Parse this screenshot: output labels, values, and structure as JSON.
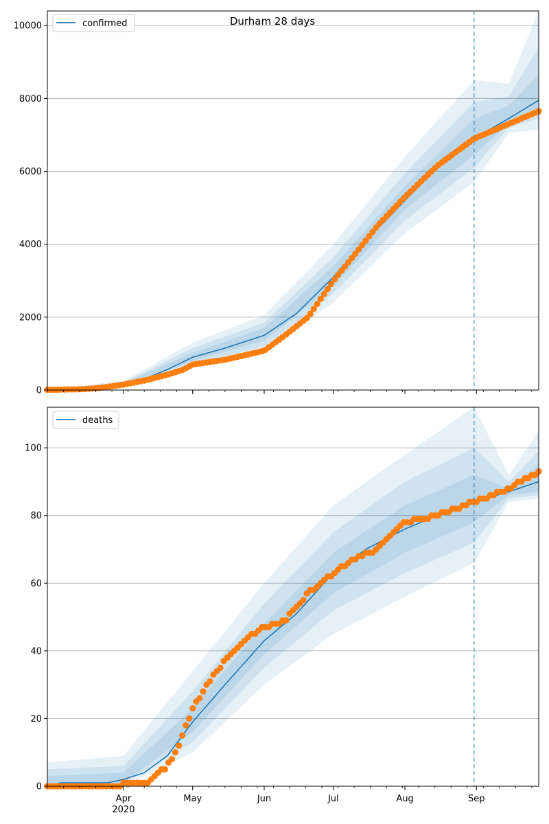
{
  "title": "Durham 28 days",
  "colors": {
    "model": "#1f77b4",
    "observed": "#ff7f0e",
    "band": "#1f77b4",
    "grid": "#b0b0b0",
    "cutoff": "#1f77b4"
  },
  "x_axis": {
    "start": "2020-02-28",
    "end": "2020-09-28",
    "month_labels": [
      {
        "date": "2020-04-01",
        "label": "Apr",
        "sublabel": "2020"
      },
      {
        "date": "2020-05-01",
        "label": "May",
        "sublabel": ""
      },
      {
        "date": "2020-06-01",
        "label": "Jun",
        "sublabel": ""
      },
      {
        "date": "2020-07-01",
        "label": "Jul",
        "sublabel": ""
      },
      {
        "date": "2020-08-01",
        "label": "Aug",
        "sublabel": ""
      },
      {
        "date": "2020-09-01",
        "label": "Sep",
        "sublabel": ""
      }
    ],
    "cutoff_date": "2020-08-31"
  },
  "chart_data": [
    {
      "type": "line",
      "panel": "top",
      "title": "Durham 28 days",
      "legend": "confirmed",
      "legend_placement": "top-left",
      "grid": "horizontal",
      "ylim": [
        0,
        10400
      ],
      "yticks": [
        0,
        2000,
        4000,
        6000,
        8000,
        10000
      ],
      "model": [
        [
          "2020-02-28",
          10
        ],
        [
          "2020-03-15",
          30
        ],
        [
          "2020-03-25",
          80
        ],
        [
          "2020-04-01",
          160
        ],
        [
          "2020-04-10",
          300
        ],
        [
          "2020-04-20",
          560
        ],
        [
          "2020-05-01",
          900
        ],
        [
          "2020-05-15",
          1150
        ],
        [
          "2020-06-01",
          1500
        ],
        [
          "2020-06-15",
          2100
        ],
        [
          "2020-07-01",
          3100
        ],
        [
          "2020-07-15",
          4100
        ],
        [
          "2020-08-01",
          5200
        ],
        [
          "2020-08-15",
          6100
        ],
        [
          "2020-08-31",
          6900
        ],
        [
          "2020-09-15",
          7450
        ],
        [
          "2020-09-28",
          7950
        ]
      ],
      "bands": [
        {
          "name": "",
          "lower": [
            [
              "2020-02-28",
              0
            ],
            [
              "2020-04-01",
              100
            ],
            [
              "2020-05-01",
              600
            ],
            [
              "2020-06-01",
              1050
            ],
            [
              "2020-07-01",
              2400
            ],
            [
              "2020-08-01",
              4300
            ],
            [
              "2020-08-31",
              5700
            ],
            [
              "2020-09-15",
              7050
            ],
            [
              "2020-09-28",
              7150
            ]
          ],
          "upper": [
            [
              "2020-02-28",
              20
            ],
            [
              "2020-04-01",
              250
            ],
            [
              "2020-05-01",
              1300
            ],
            [
              "2020-06-01",
              2050
            ],
            [
              "2020-07-01",
              4000
            ],
            [
              "2020-08-01",
              6400
            ],
            [
              "2020-08-31",
              8500
            ],
            [
              "2020-09-15",
              8400
            ],
            [
              "2020-09-28",
              10400
            ]
          ]
        },
        {
          "name": "",
          "lower": [
            [
              "2020-02-28",
              0
            ],
            [
              "2020-04-01",
              120
            ],
            [
              "2020-05-01",
              700
            ],
            [
              "2020-06-01",
              1200
            ],
            [
              "2020-07-01",
              2650
            ],
            [
              "2020-08-01",
              4650
            ],
            [
              "2020-08-31",
              6100
            ],
            [
              "2020-09-15",
              7200
            ],
            [
              "2020-09-28",
              7450
            ]
          ],
          "upper": [
            [
              "2020-02-28",
              15
            ],
            [
              "2020-04-01",
              210
            ],
            [
              "2020-05-01",
              1150
            ],
            [
              "2020-06-01",
              1850
            ],
            [
              "2020-07-01",
              3650
            ],
            [
              "2020-08-01",
              5950
            ],
            [
              "2020-08-31",
              7900
            ],
            [
              "2020-09-15",
              8050
            ],
            [
              "2020-09-28",
              9400
            ]
          ]
        },
        {
          "name": "",
          "lower": [
            [
              "2020-02-28",
              0
            ],
            [
              "2020-04-01",
              140
            ],
            [
              "2020-05-01",
              800
            ],
            [
              "2020-06-01",
              1350
            ],
            [
              "2020-07-01",
              2850
            ],
            [
              "2020-08-01",
              4950
            ],
            [
              "2020-08-31",
              6450
            ],
            [
              "2020-09-15",
              7300
            ],
            [
              "2020-09-28",
              7650
            ]
          ],
          "upper": [
            [
              "2020-02-28",
              12
            ],
            [
              "2020-04-01",
              185
            ],
            [
              "2020-05-01",
              1020
            ],
            [
              "2020-06-01",
              1700
            ],
            [
              "2020-07-01",
              3400
            ],
            [
              "2020-08-01",
              5600
            ],
            [
              "2020-08-31",
              7450
            ],
            [
              "2020-09-15",
              7800
            ],
            [
              "2020-09-28",
              8650
            ]
          ]
        }
      ],
      "observed": [
        [
          "2020-02-28",
          5
        ],
        [
          "2020-03-15",
          25
        ],
        [
          "2020-03-22",
          60
        ],
        [
          "2020-04-01",
          150
        ],
        [
          "2020-04-10",
          260
        ],
        [
          "2020-04-20",
          420
        ],
        [
          "2020-04-27",
          560
        ],
        [
          "2020-05-01",
          700
        ],
        [
          "2020-05-15",
          830
        ],
        [
          "2020-06-01",
          1080
        ],
        [
          "2020-06-10",
          1500
        ],
        [
          "2020-06-20",
          2000
        ],
        [
          "2020-07-01",
          3000
        ],
        [
          "2020-07-10",
          3700
        ],
        [
          "2020-07-20",
          4500
        ],
        [
          "2020-08-01",
          5300
        ],
        [
          "2020-08-15",
          6150
        ],
        [
          "2020-08-31",
          6900
        ],
        [
          "2020-09-15",
          7300
        ],
        [
          "2020-09-28",
          7650
        ]
      ]
    },
    {
      "type": "line",
      "panel": "bottom",
      "legend": "deaths",
      "legend_placement": "top-left",
      "grid": "horizontal",
      "ylim": [
        0,
        112
      ],
      "yticks": [
        0,
        20,
        40,
        60,
        80,
        100
      ],
      "model": [
        [
          "2020-02-28",
          0
        ],
        [
          "2020-03-05",
          1
        ],
        [
          "2020-03-25",
          1
        ],
        [
          "2020-04-01",
          2
        ],
        [
          "2020-04-10",
          4
        ],
        [
          "2020-04-20",
          9
        ],
        [
          "2020-05-01",
          19
        ],
        [
          "2020-05-15",
          30
        ],
        [
          "2020-06-01",
          43
        ],
        [
          "2020-06-15",
          51
        ],
        [
          "2020-07-01",
          63
        ],
        [
          "2020-07-15",
          70
        ],
        [
          "2020-08-01",
          76
        ],
        [
          "2020-08-15",
          80
        ],
        [
          "2020-08-31",
          84
        ],
        [
          "2020-09-15",
          87
        ],
        [
          "2020-09-28",
          90
        ]
      ],
      "bands": [
        {
          "name": "",
          "lower": [
            [
              "2020-02-28",
              0
            ],
            [
              "2020-04-01",
              0
            ],
            [
              "2020-05-01",
              10
            ],
            [
              "2020-06-01",
              30
            ],
            [
              "2020-07-01",
              45
            ],
            [
              "2020-08-01",
              56
            ],
            [
              "2020-08-31",
              66
            ],
            [
              "2020-09-15",
              84
            ],
            [
              "2020-09-28",
              85
            ]
          ],
          "upper": [
            [
              "2020-02-28",
              7
            ],
            [
              "2020-04-01",
              9
            ],
            [
              "2020-05-01",
              34
            ],
            [
              "2020-06-01",
              60
            ],
            [
              "2020-07-01",
              83
            ],
            [
              "2020-08-01",
              98
            ],
            [
              "2020-08-31",
              112
            ],
            [
              "2020-09-15",
              92
            ],
            [
              "2020-09-28",
              105
            ]
          ]
        },
        {
          "name": "",
          "lower": [
            [
              "2020-02-28",
              0
            ],
            [
              "2020-04-01",
              1
            ],
            [
              "2020-05-01",
              13
            ],
            [
              "2020-06-01",
              35
            ],
            [
              "2020-07-01",
              52
            ],
            [
              "2020-08-01",
              63
            ],
            [
              "2020-08-31",
              72
            ],
            [
              "2020-09-15",
              85
            ],
            [
              "2020-09-28",
              86
            ]
          ],
          "upper": [
            [
              "2020-02-28",
              5
            ],
            [
              "2020-04-01",
              6
            ],
            [
              "2020-05-01",
              28
            ],
            [
              "2020-06-01",
              54
            ],
            [
              "2020-07-01",
              75
            ],
            [
              "2020-08-01",
              90
            ],
            [
              "2020-08-31",
              100
            ],
            [
              "2020-09-15",
              90
            ],
            [
              "2020-09-28",
              99
            ]
          ]
        },
        {
          "name": "",
          "lower": [
            [
              "2020-02-28",
              0
            ],
            [
              "2020-04-01",
              1
            ],
            [
              "2020-05-01",
              16
            ],
            [
              "2020-06-01",
              39
            ],
            [
              "2020-07-01",
              57
            ],
            [
              "2020-08-01",
              69
            ],
            [
              "2020-08-31",
              78
            ],
            [
              "2020-09-15",
              86
            ],
            [
              "2020-09-28",
              87
            ]
          ],
          "upper": [
            [
              "2020-02-28",
              3
            ],
            [
              "2020-04-01",
              4
            ],
            [
              "2020-05-01",
              23
            ],
            [
              "2020-06-01",
              48
            ],
            [
              "2020-07-01",
              69
            ],
            [
              "2020-08-01",
              83
            ],
            [
              "2020-08-31",
              92
            ],
            [
              "2020-09-15",
              88
            ],
            [
              "2020-09-28",
              95
            ]
          ]
        }
      ],
      "observed": [
        [
          "2020-02-28",
          0
        ],
        [
          "2020-03-31",
          0
        ],
        [
          "2020-04-01",
          1
        ],
        [
          "2020-04-12",
          1
        ],
        [
          "2020-04-15",
          3
        ],
        [
          "2020-04-20",
          6
        ],
        [
          "2020-04-25",
          12
        ],
        [
          "2020-05-01",
          23
        ],
        [
          "2020-05-10",
          33
        ],
        [
          "2020-05-15",
          37
        ],
        [
          "2020-05-25",
          44
        ],
        [
          "2020-06-01",
          47
        ],
        [
          "2020-06-10",
          49
        ],
        [
          "2020-06-20",
          57
        ],
        [
          "2020-07-01",
          63
        ],
        [
          "2020-07-10",
          67
        ],
        [
          "2020-07-20",
          70
        ],
        [
          "2020-08-01",
          78
        ],
        [
          "2020-08-15",
          80
        ],
        [
          "2020-08-31",
          84
        ],
        [
          "2020-09-15",
          88
        ],
        [
          "2020-09-28",
          93
        ]
      ]
    }
  ]
}
